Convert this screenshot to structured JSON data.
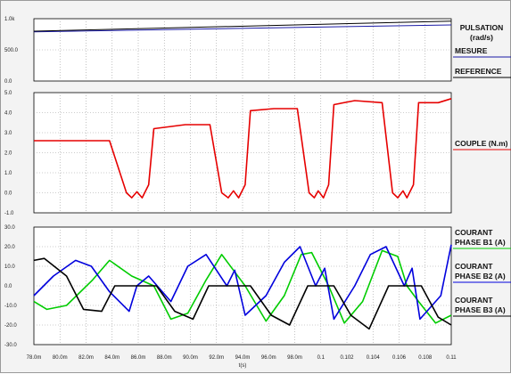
{
  "x_axis": {
    "label": "t(s)",
    "tick_labels": [
      "78.0m",
      "80.0m",
      "82.0m",
      "84.0m",
      "86.0m",
      "88.0m",
      "90.0m",
      "92.0m",
      "94.0m",
      "96.0m",
      "98.0m",
      "0.1",
      "0.102",
      "0.104",
      "0.106",
      "0.108",
      "0.11"
    ]
  },
  "colors": {
    "mesure": "#1a1aa6",
    "reference": "#000000",
    "couple": "#e60000",
    "b1": "#00cc00",
    "b2": "#0000dd",
    "b3": "#000000",
    "panel_bg": "#ffffff",
    "frame_bg": "#f3f3f3",
    "grid": "#9a9a9a"
  },
  "chart_data": [
    {
      "type": "line",
      "title": "PULSATION (rad/s)",
      "ylim": [
        0,
        1000
      ],
      "ytick_labels": [
        "0.0",
        "500.0",
        "1.0k"
      ],
      "legend": [
        "PULSATION",
        "(rad/s)",
        "MESURE",
        "REFERENCE"
      ],
      "legend_placement": "right",
      "grid": true,
      "series": [
        {
          "name": "MESURE",
          "x": [
            0.078,
            0.11
          ],
          "y": [
            790,
            900
          ]
        },
        {
          "name": "REFERENCE",
          "x": [
            0.078,
            0.11
          ],
          "y": [
            800,
            960
          ]
        }
      ]
    },
    {
      "type": "line",
      "title": "COUPLE (N.m)",
      "ylim": [
        -1,
        5
      ],
      "ytick_labels": [
        "-1.0",
        "0.0",
        "1.0",
        "2.0",
        "3.0",
        "4.0",
        "5.0"
      ],
      "legend": [
        "COUPLE (N.m)"
      ],
      "legend_placement": "right",
      "grid": true,
      "series": [
        {
          "name": "COUPLE (N.m)",
          "x": [
            0.078,
            0.0838,
            0.0851,
            0.0855,
            0.0859,
            0.0863,
            0.0868,
            0.0872,
            0.0896,
            0.0915,
            0.0924,
            0.0929,
            0.0933,
            0.0937,
            0.0942,
            0.0946,
            0.0964,
            0.0982,
            0.0991,
            0.0995,
            0.0998,
            0.1002,
            0.1006,
            0.101,
            0.1026,
            0.1047,
            0.1055,
            0.1059,
            0.1063,
            0.1066,
            0.1071,
            0.1075,
            0.109,
            0.11
          ],
          "y": [
            2.6,
            2.6,
            0.0,
            -0.25,
            0.05,
            -0.25,
            0.4,
            3.2,
            3.4,
            3.4,
            0.0,
            -0.25,
            0.1,
            -0.25,
            0.4,
            4.1,
            4.2,
            4.2,
            0.0,
            -0.25,
            0.1,
            -0.25,
            0.4,
            4.4,
            4.6,
            4.5,
            0.0,
            -0.25,
            0.1,
            -0.25,
            0.4,
            4.5,
            4.5,
            4.7
          ]
        }
      ]
    },
    {
      "type": "line",
      "title": "COURANT PHASE",
      "ylim": [
        -30,
        30
      ],
      "ytick_labels": [
        "-30.0",
        "-20.0",
        "-10.0",
        "0.0",
        "10.0",
        "20.0",
        "30.0"
      ],
      "legend": [
        "COURANT",
        "PHASE B1 (A)",
        "COURANT",
        "PHASE B2 (A)",
        "COURANT",
        "PHASE B3 (A)"
      ],
      "legend_placement": "right",
      "grid": true,
      "series": [
        {
          "name": "COURANT PHASE B1 (A)",
          "x": [
            0.078,
            0.079,
            0.0805,
            0.0825,
            0.0838,
            0.0855,
            0.0872,
            0.0885,
            0.0898,
            0.0912,
            0.0924,
            0.0942,
            0.0958,
            0.0972,
            0.0985,
            0.0993,
            0.1006,
            0.1018,
            0.1032,
            0.1047,
            0.1059,
            0.1066,
            0.1075,
            0.1088,
            0.11
          ],
          "y": [
            -8,
            -12,
            -10,
            3,
            13,
            5,
            0,
            -17,
            -14,
            3,
            16,
            0,
            -18,
            -5,
            16,
            17,
            0,
            -19,
            -8,
            18,
            15,
            0,
            -8,
            -19,
            -15
          ]
        },
        {
          "name": "COURANT PHASE B2 (A)",
          "x": [
            0.078,
            0.0795,
            0.0812,
            0.0824,
            0.0838,
            0.0853,
            0.0859,
            0.0868,
            0.0885,
            0.0898,
            0.0912,
            0.0928,
            0.0934,
            0.0942,
            0.0958,
            0.0972,
            0.0984,
            0.0996,
            0.1003,
            0.101,
            0.1026,
            0.1038,
            0.105,
            0.1064,
            0.107,
            0.1076,
            0.1092,
            0.11
          ],
          "y": [
            -5,
            5,
            13,
            10,
            -3,
            -13,
            0,
            5,
            -8,
            10,
            16,
            0,
            8,
            -15,
            -5,
            12,
            20,
            0,
            9,
            -17,
            0,
            16,
            20,
            0,
            9,
            -17,
            -5,
            21
          ]
        },
        {
          "name": "COURANT PHASE B3 (A)",
          "x": [
            0.078,
            0.0788,
            0.0805,
            0.0818,
            0.0832,
            0.0842,
            0.0874,
            0.0888,
            0.0902,
            0.0914,
            0.0946,
            0.0962,
            0.0976,
            0.099,
            0.101,
            0.1023,
            0.1037,
            0.1052,
            0.1077,
            0.109,
            0.11
          ],
          "y": [
            13,
            14,
            5,
            -12,
            -13,
            0,
            0,
            -13,
            -17,
            0,
            0,
            -15,
            -20,
            0,
            0,
            -15,
            -22,
            0,
            0,
            -16,
            -20
          ]
        }
      ]
    }
  ]
}
